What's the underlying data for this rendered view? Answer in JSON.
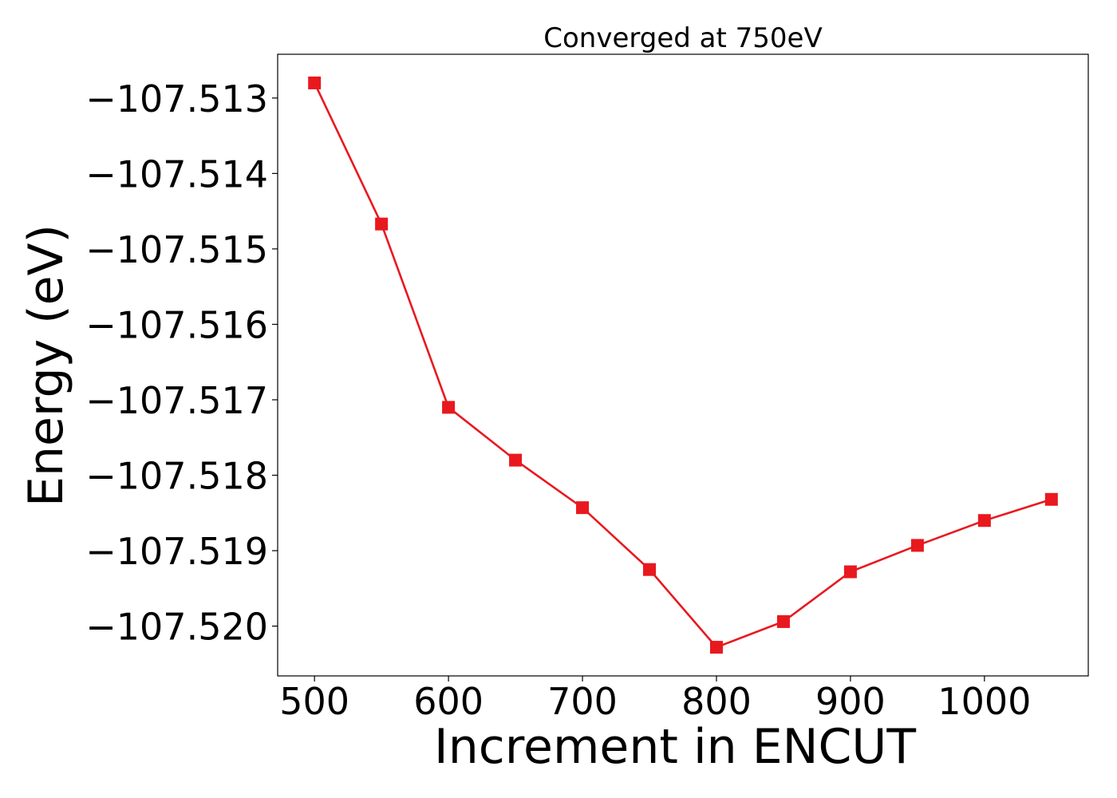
{
  "chart_data": {
    "type": "line",
    "title": "Converged at 750eV",
    "xlabel": "Increment in ENCUT",
    "ylabel": "Energy (eV)",
    "x": [
      500,
      550,
      600,
      650,
      700,
      750,
      800,
      850,
      900,
      950,
      1000,
      1050
    ],
    "series": [
      {
        "values": [
          -107.5128,
          -107.51467,
          -107.5171,
          -107.5178,
          -107.51843,
          -107.51925,
          -107.52028,
          -107.51994,
          -107.51928,
          -107.51893,
          -107.5186,
          -107.51832
        ],
        "color": "#e8191e",
        "marker": "square"
      }
    ],
    "xticks": [
      500,
      600,
      700,
      800,
      900,
      1000
    ],
    "xtick_labels": [
      "500",
      "600",
      "700",
      "800",
      "900",
      "1000"
    ],
    "yticks": [
      -107.513,
      -107.514,
      -107.515,
      -107.516,
      -107.517,
      -107.518,
      -107.519,
      -107.52
    ],
    "ytick_labels": [
      "−107.513",
      "−107.514",
      "−107.515",
      "−107.516",
      "−107.517",
      "−107.518",
      "−107.519",
      "−107.520"
    ],
    "xlim": [
      472.5,
      1077.5
    ],
    "ylim": [
      -107.52066,
      -107.51242
    ],
    "grid": false,
    "legend": "none"
  }
}
